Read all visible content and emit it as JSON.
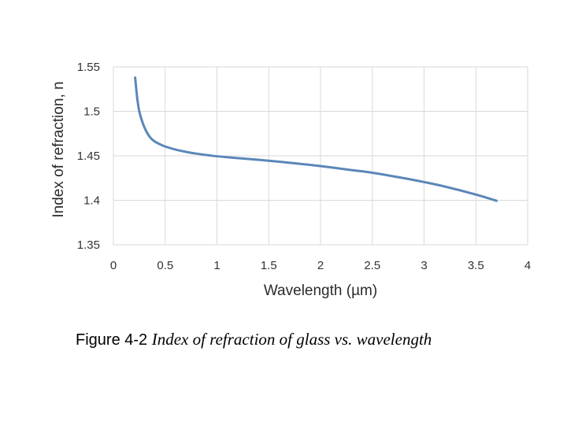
{
  "chart_data": {
    "type": "line",
    "xlabel": "Wavelength (µm)",
    "ylabel": "Index of refraction, n",
    "xlim": [
      0,
      4
    ],
    "ylim": [
      1.35,
      1.55
    ],
    "x_ticks": [
      "0",
      "0.5",
      "1",
      "1.5",
      "2",
      "2.5",
      "3",
      "3.5",
      "4"
    ],
    "y_ticks": [
      "1.35",
      "1.4",
      "1.45",
      "1.5",
      "1.55"
    ],
    "grid": true,
    "legend": "none",
    "line_color": "#5b87b8",
    "series": [
      {
        "x": [
          0.21,
          0.23,
          0.25,
          0.28,
          0.3,
          0.33,
          0.36,
          0.4,
          0.45,
          0.5,
          0.6,
          0.7,
          0.8,
          1.0,
          1.2,
          1.5,
          1.8,
          2.0,
          2.3,
          2.5,
          2.8,
          3.0,
          3.2,
          3.5,
          3.7
        ],
        "y": [
          1.538,
          1.515,
          1.5,
          1.488,
          1.482,
          1.475,
          1.47,
          1.466,
          1.463,
          1.4605,
          1.457,
          1.4545,
          1.4525,
          1.4495,
          1.4475,
          1.4445,
          1.441,
          1.4385,
          1.434,
          1.431,
          1.425,
          1.4205,
          1.4155,
          1.4065,
          1.3995
        ]
      }
    ]
  },
  "caption": {
    "figure_label": "Figure 4-2",
    "text": "Index of refraction of glass vs. wavelength"
  }
}
